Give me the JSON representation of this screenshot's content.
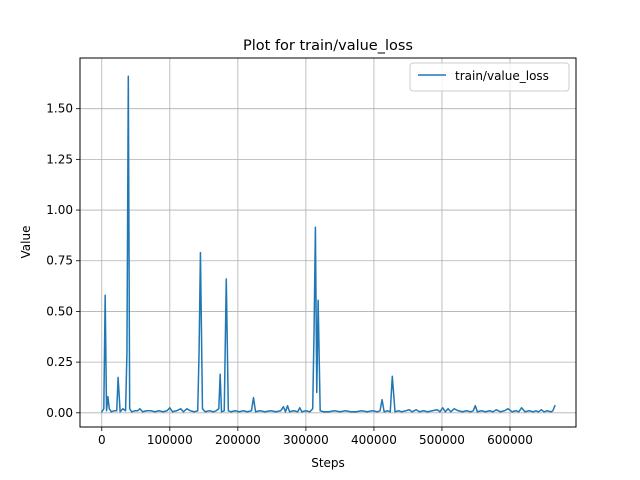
{
  "chart_data": {
    "type": "line",
    "title": "Plot for train/value_loss",
    "xlabel": "Steps",
    "ylabel": "Value",
    "xlim": [
      -32000,
      697000
    ],
    "ylim": [
      -0.07,
      1.75
    ],
    "xticks": [
      0,
      100000,
      200000,
      300000,
      400000,
      500000,
      600000
    ],
    "xtick_labels": [
      "0",
      "100000",
      "200000",
      "300000",
      "400000",
      "500000",
      "600000"
    ],
    "yticks": [
      0.0,
      0.25,
      0.5,
      0.75,
      1.0,
      1.25,
      1.5
    ],
    "ytick_labels": [
      "0.00",
      "0.25",
      "0.50",
      "0.75",
      "1.00",
      "1.25",
      "1.50"
    ],
    "grid": true,
    "legend_position": "top-right",
    "series": [
      {
        "name": "train/value_loss",
        "color": "#1f77b4",
        "x": [
          0,
          3000,
          5000,
          7000,
          9000,
          11000,
          14000,
          18000,
          22000,
          24000,
          27000,
          31000,
          35000,
          37000,
          39000,
          41000,
          44000,
          49000,
          53000,
          56000,
          60000,
          66000,
          72000,
          78000,
          84000,
          90000,
          96000,
          100000,
          104000,
          110000,
          116000,
          120000,
          125000,
          130000,
          136000,
          141000,
          143000,
          145000,
          148000,
          152000,
          158000,
          164000,
          168000,
          172000,
          174000,
          176000,
          180000,
          183000,
          186000,
          190000,
          196000,
          202000,
          208000,
          214000,
          220000,
          223000,
          226000,
          232000,
          240000,
          248000,
          256000,
          263000,
          267000,
          270000,
          273000,
          276000,
          282000,
          288000,
          291000,
          294000,
          300000,
          306000,
          310000,
          312000,
          314000,
          316000,
          318000,
          321000,
          326000,
          334000,
          342000,
          350000,
          358000,
          366000,
          374000,
          382000,
          390000,
          398000,
          405000,
          409000,
          412000,
          415000,
          420000,
          424000,
          427000,
          431000,
          436000,
          441000,
          447000,
          452000,
          456000,
          462000,
          467000,
          473000,
          479000,
          486000,
          493000,
          497000,
          501000,
          505000,
          509000,
          513000,
          518000,
          524000,
          530000,
          536000,
          542000,
          546000,
          549000,
          552000,
          558000,
          564000,
          570000,
          575000,
          580000,
          586000,
          592000,
          597000,
          603000,
          609000,
          613000,
          617000,
          622000,
          628000,
          634000,
          638000,
          642000,
          646000,
          650000,
          655000,
          660000,
          663000,
          666000
        ],
        "y": [
          0.005,
          0.02,
          0.58,
          0.01,
          0.08,
          0.02,
          0.005,
          0.01,
          0.01,
          0.175,
          0.005,
          0.02,
          0.01,
          0.3,
          1.66,
          0.02,
          0.005,
          0.01,
          0.01,
          0.02,
          0.005,
          0.01,
          0.01,
          0.005,
          0.01,
          0.005,
          0.01,
          0.025,
          0.005,
          0.01,
          0.02,
          0.005,
          0.02,
          0.01,
          0.005,
          0.01,
          0.3,
          0.79,
          0.02,
          0.005,
          0.01,
          0.005,
          0.01,
          0.02,
          0.19,
          0.005,
          0.01,
          0.66,
          0.01,
          0.005,
          0.01,
          0.005,
          0.01,
          0.005,
          0.01,
          0.075,
          0.005,
          0.01,
          0.005,
          0.01,
          0.005,
          0.01,
          0.03,
          0.005,
          0.035,
          0.005,
          0.01,
          0.005,
          0.025,
          0.005,
          0.01,
          0.005,
          0.02,
          0.4,
          0.915,
          0.1,
          0.555,
          0.01,
          0.005,
          0.005,
          0.01,
          0.005,
          0.01,
          0.005,
          0.005,
          0.01,
          0.005,
          0.01,
          0.005,
          0.01,
          0.065,
          0.005,
          0.01,
          0.005,
          0.18,
          0.005,
          0.01,
          0.005,
          0.01,
          0.015,
          0.005,
          0.015,
          0.005,
          0.01,
          0.005,
          0.01,
          0.015,
          0.005,
          0.025,
          0.005,
          0.02,
          0.005,
          0.02,
          0.01,
          0.005,
          0.01,
          0.005,
          0.01,
          0.035,
          0.005,
          0.01,
          0.005,
          0.01,
          0.005,
          0.015,
          0.005,
          0.01,
          0.02,
          0.005,
          0.01,
          0.005,
          0.025,
          0.005,
          0.01,
          0.005,
          0.01,
          0.005,
          0.015,
          0.005,
          0.01,
          0.005,
          0.01,
          0.035
        ]
      }
    ]
  }
}
